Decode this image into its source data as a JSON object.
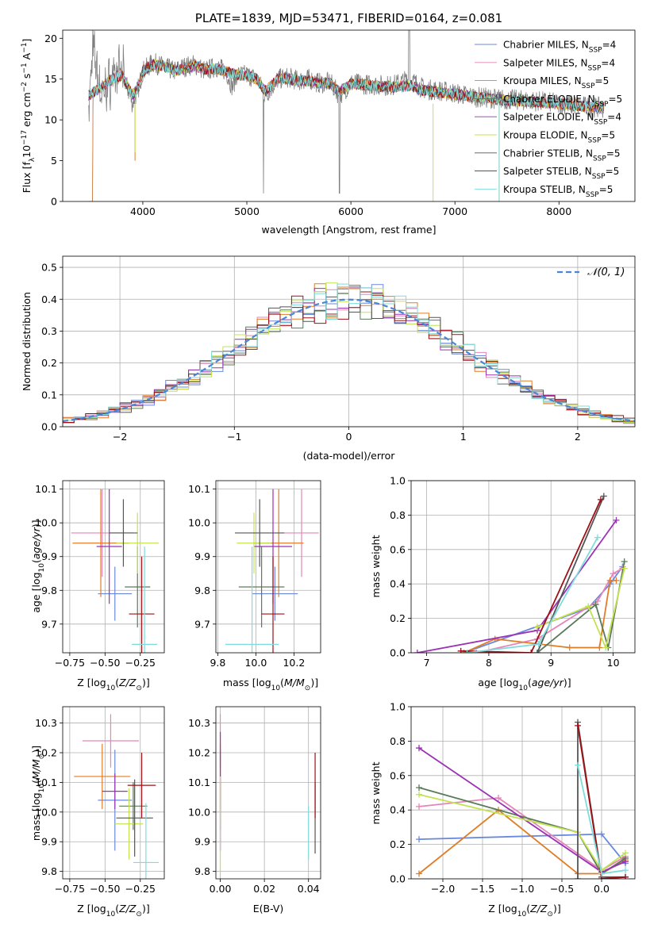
{
  "colors": [
    "#6a89dd",
    "#e486b8",
    "#e07d27",
    "#5a7a5a",
    "#9b31b5",
    "#c4e250",
    "#555555",
    "#9e1015",
    "#7fdcdc"
  ],
  "chart_data": [
    {
      "type": "line",
      "title": "PLATE=1839, MJD=53471, FIBERID=0164, z=0.081",
      "xlabel": "wavelength [Angstrom, rest frame]",
      "ylabel": "Flux [f$_\\lambda$10$^{-17}$ erg cm$^{-2}$ s$^{-1}$ A$^{-1}$]",
      "ylabel_parts": [
        "Flux [f",
        "λ",
        "10",
        "−17",
        " erg cm",
        "−2",
        " s",
        "−1",
        " A",
        "−1",
        "]"
      ],
      "xlim": [
        3230,
        8730
      ],
      "ylim": [
        0,
        21
      ],
      "xticks": [
        4000,
        5000,
        6000,
        7000,
        8000
      ],
      "yticks": [
        0,
        5,
        10,
        15,
        20
      ],
      "legend": {
        "position": "top-right",
        "entries": [
          "Chabrier MILES, N$_{SSP}$=4",
          "Salpeter MILES, N$_{SSP}$=4",
          "Kroupa MILES, N$_{SSP}$=5",
          "Chabrier ELODIE, N$_{SSP}$=5",
          "Salpeter ELODIE, N$_{SSP}$=4",
          "Kroupa ELODIE, N$_{SSP}$=5",
          "Chabrier STELIB, N$_{SSP}$=5",
          "Salpeter STELIB, N$_{SSP}$=5",
          "Kroupa STELIB, N$_{SSP}$=5"
        ],
        "entry_labels": [
          [
            "Chabrier MILES, N",
            "SSP",
            "=4"
          ],
          [
            "Salpeter MILES, N",
            "SSP",
            "=4"
          ],
          [
            "Kroupa MILES, N",
            "SSP",
            "=5"
          ],
          [
            "Chabrier ELODIE, N",
            "SSP",
            "=5"
          ],
          [
            "Salpeter ELODIE, N",
            "SSP",
            "=4"
          ],
          [
            "Kroupa ELODIE, N",
            "SSP",
            "=5"
          ],
          [
            "Chabrier STELIB, N",
            "SSP",
            "=5"
          ],
          [
            "Salpeter STELIB, N",
            "SSP",
            "=5"
          ],
          [
            "Kroupa STELIB, N",
            "SSP",
            "=5"
          ]
        ]
      },
      "observed_spectrum": [
        [
          3480,
          11
        ],
        [
          3520,
          19
        ],
        [
          3600,
          13
        ],
        [
          3700,
          15
        ],
        [
          3800,
          16
        ],
        [
          3900,
          12
        ],
        [
          3960,
          14
        ],
        [
          4000,
          16
        ],
        [
          4100,
          17
        ],
        [
          4200,
          16.5
        ],
        [
          4300,
          16
        ],
        [
          4400,
          16.5
        ],
        [
          4500,
          16.8
        ],
        [
          4600,
          16
        ],
        [
          4700,
          16.5
        ],
        [
          4800,
          16
        ],
        [
          4862,
          14
        ],
        [
          4900,
          15.5
        ],
        [
          5000,
          15.5
        ],
        [
          5100,
          15
        ],
        [
          5175,
          13
        ],
        [
          5300,
          15
        ],
        [
          5400,
          15.2
        ],
        [
          5500,
          14.8
        ],
        [
          5600,
          15
        ],
        [
          5700,
          14.5
        ],
        [
          5800,
          14.6
        ],
        [
          5890,
          13
        ],
        [
          6000,
          14.5
        ],
        [
          6200,
          14.3
        ],
        [
          6400,
          14.2
        ],
        [
          6563,
          15
        ],
        [
          6700,
          13.8
        ],
        [
          6900,
          13.5
        ],
        [
          7200,
          12.8
        ],
        [
          7500,
          12.5
        ],
        [
          7800,
          12.3
        ],
        [
          8000,
          12
        ],
        [
          8200,
          11.7
        ],
        [
          8400,
          11.5
        ]
      ],
      "model_spectrum": [
        [
          3480,
          13
        ],
        [
          3600,
          14
        ],
        [
          3700,
          15
        ],
        [
          3800,
          15.5
        ],
        [
          3900,
          13
        ],
        [
          3960,
          14
        ],
        [
          4000,
          16
        ],
        [
          4100,
          16.8
        ],
        [
          4200,
          16.6
        ],
        [
          4300,
          16
        ],
        [
          4400,
          16.4
        ],
        [
          4500,
          16.6
        ],
        [
          4600,
          16.2
        ],
        [
          4700,
          16.3
        ],
        [
          4800,
          15.9
        ],
        [
          4900,
          15.6
        ],
        [
          5000,
          15.4
        ],
        [
          5100,
          15
        ],
        [
          5175,
          13.5
        ],
        [
          5300,
          15
        ],
        [
          5400,
          15
        ],
        [
          5500,
          14.8
        ],
        [
          5600,
          14.8
        ],
        [
          5700,
          14.5
        ],
        [
          5800,
          14.5
        ],
        [
          5890,
          13.4
        ],
        [
          6000,
          14.4
        ],
        [
          6200,
          14.2
        ],
        [
          6400,
          14
        ],
        [
          6563,
          14.2
        ],
        [
          6700,
          13.6
        ],
        [
          6900,
          13.3
        ],
        [
          7200,
          12.8
        ],
        [
          7500,
          12.4
        ],
        [
          7800,
          12.2
        ],
        [
          8000,
          12
        ],
        [
          8200,
          11.7
        ],
        [
          8400,
          11.6
        ]
      ]
    },
    {
      "type": "line",
      "xlabel": "(data-model)/error",
      "ylabel": "Normed distribution",
      "xlim": [
        -2.5,
        2.5
      ],
      "ylim": [
        0,
        0.535
      ],
      "xticks": [
        -2,
        -1,
        0,
        1,
        2
      ],
      "yticks": [
        0.0,
        0.1,
        0.2,
        0.3,
        0.4,
        0.5
      ],
      "legend": {
        "position": "top-right",
        "entries": [
          "$\\mathcal{N}(0, 1)$"
        ],
        "label_text": "𝒩(0, 1)"
      },
      "bin_width": 0.1,
      "reference_curve": "normal(0,1) pdf"
    },
    {
      "type": "scatter",
      "xlabel": "Z [log$_{10}$($Z/Z_\\odot$)]",
      "ylabel": "age  [log$_{10}$($age/yr$)]",
      "xlim": [
        -0.8,
        -0.08
      ],
      "ylim": [
        9.615,
        10.125
      ],
      "xticks": [
        -0.75,
        -0.5,
        -0.25
      ],
      "yticks": [
        9.7,
        9.8,
        9.9,
        10.0,
        10.1
      ],
      "points": [
        {
          "x": -0.43,
          "xerr": 0.12,
          "y": 9.79,
          "yerr": 0.08
        },
        {
          "x": -0.52,
          "xerr": 0.22,
          "y": 9.97,
          "yerr": 0.13
        },
        {
          "x": -0.53,
          "xerr": 0.2,
          "y": 9.94,
          "yerr": 0.16
        },
        {
          "x": -0.27,
          "xerr": 0.09,
          "y": 9.81,
          "yerr": 0.12
        },
        {
          "x": -0.47,
          "xerr": 0.09,
          "y": 9.93,
          "yerr": 0.17
        },
        {
          "x": -0.27,
          "xerr": 0.15,
          "y": 9.94,
          "yerr": 0.09
        },
        {
          "x": -0.37,
          "xerr": 0.1,
          "y": 9.97,
          "yerr": 0.1
        },
        {
          "x": -0.24,
          "xerr": 0.09,
          "y": 9.73,
          "yerr": 0.17
        },
        {
          "x": -0.22,
          "xerr": 0.09,
          "y": 9.64,
          "yerr": 0.29
        }
      ]
    },
    {
      "type": "scatter",
      "xlabel": "mass [log$_{10}$($M/M_\\odot$)]",
      "ylabel": "",
      "xlim": [
        9.79,
        10.34
      ],
      "ylim": [
        9.615,
        10.125
      ],
      "xticks": [
        9.8,
        10.0,
        10.2
      ],
      "yticks": [
        9.7,
        9.8,
        9.9,
        10.0,
        10.1
      ],
      "points": [
        {
          "x": 10.1,
          "xerr": 0.12,
          "y": 9.79,
          "yerr": 0.08
        },
        {
          "x": 10.24,
          "xerr": 0.09,
          "y": 9.97,
          "yerr": 0.13
        },
        {
          "x": 10.12,
          "xerr": 0.13,
          "y": 9.94,
          "yerr": 0.16
        },
        {
          "x": 10.03,
          "xerr": 0.12,
          "y": 9.81,
          "yerr": 0.12
        },
        {
          "x": 10.09,
          "xerr": 0.1,
          "y": 9.93,
          "yerr": 0.17
        },
        {
          "x": 9.99,
          "xerr": 0.09,
          "y": 9.94,
          "yerr": 0.09
        },
        {
          "x": 10.02,
          "xerr": 0.13,
          "y": 9.97,
          "yerr": 0.1
        },
        {
          "x": 10.09,
          "xerr": 0.06,
          "y": 9.73,
          "yerr": 0.17
        },
        {
          "x": 9.98,
          "xerr": 0.14,
          "y": 9.64,
          "yerr": 0.29
        }
      ]
    },
    {
      "type": "line",
      "xlabel": "age  [log$_{10}$($age/yr$)]",
      "ylabel": "mass weight",
      "xlim": [
        6.75,
        10.35
      ],
      "ylim": [
        0,
        1
      ],
      "xticks": [
        7,
        8,
        9,
        10
      ],
      "yticks": [
        0.0,
        0.2,
        0.4,
        0.6,
        0.8,
        1.0
      ],
      "series": [
        {
          "points": [
            [
              7.6,
              0.0
            ],
            [
              9.6,
              0.26
            ],
            [
              9.95,
              0.4
            ],
            [
              10.15,
              0.5
            ]
          ]
        },
        {
          "points": [
            [
              7.8,
              0.0
            ],
            [
              8.78,
              0.08
            ],
            [
              9.75,
              0.3
            ],
            [
              10.0,
              0.46
            ],
            [
              10.15,
              0.49
            ]
          ]
        },
        {
          "points": [
            [
              7.6,
              0.0
            ],
            [
              8.1,
              0.08
            ],
            [
              9.3,
              0.03
            ],
            [
              9.78,
              0.03
            ],
            [
              9.95,
              0.42
            ],
            [
              10.05,
              0.42
            ]
          ]
        },
        {
          "points": [
            [
              8.78,
              0.0
            ],
            [
              9.72,
              0.28
            ],
            [
              9.92,
              0.03
            ],
            [
              10.18,
              0.53
            ]
          ]
        },
        {
          "points": [
            [
              6.85,
              0.0
            ],
            [
              8.78,
              0.13
            ],
            [
              10.05,
              0.77
            ]
          ]
        },
        {
          "points": [
            [
              8.78,
              0.15
            ],
            [
              9.6,
              0.27
            ],
            [
              9.88,
              0.03
            ],
            [
              10.18,
              0.49
            ]
          ]
        },
        {
          "points": [
            [
              8.78,
              0.0
            ],
            [
              9.85,
              0.91
            ]
          ]
        },
        {
          "points": [
            [
              7.55,
              0.01
            ],
            [
              8.68,
              0.0
            ],
            [
              9.8,
              0.89
            ]
          ]
        },
        {
          "points": [
            [
              7.65,
              0.0
            ],
            [
              8.8,
              0.05
            ],
            [
              9.75,
              0.67
            ]
          ]
        }
      ]
    },
    {
      "type": "scatter",
      "xlabel": "Z [log$_{10}$($Z/Z_\\odot$)]",
      "ylabel": "mass [log$_{10}$($M/M_\\odot$)]",
      "xlim": [
        -0.8,
        -0.08
      ],
      "ylim": [
        9.775,
        10.355
      ],
      "xticks": [
        -0.75,
        -0.5,
        -0.25
      ],
      "yticks": [
        9.8,
        9.9,
        10.0,
        10.1,
        10.2,
        10.3
      ],
      "points": [
        {
          "x": -0.43,
          "xerr": 0.12,
          "y": 10.04,
          "yerr": 0.17
        },
        {
          "x": -0.46,
          "xerr": 0.2,
          "y": 10.24,
          "yerr": 0.09
        },
        {
          "x": -0.52,
          "xerr": 0.2,
          "y": 10.12,
          "yerr": 0.11
        },
        {
          "x": -0.3,
          "xerr": 0.1,
          "y": 10.02,
          "yerr": 0.08
        },
        {
          "x": -0.43,
          "xerr": 0.09,
          "y": 10.07,
          "yerr": 0.06
        },
        {
          "x": -0.33,
          "xerr": 0.1,
          "y": 9.96,
          "yerr": 0.12
        },
        {
          "x": -0.29,
          "xerr": 0.13,
          "y": 9.98,
          "yerr": 0.13
        },
        {
          "x": -0.24,
          "xerr": 0.1,
          "y": 10.09,
          "yerr": 0.11
        },
        {
          "x": -0.21,
          "xerr": 0.09,
          "y": 9.83,
          "yerr": 0.2
        }
      ]
    },
    {
      "type": "scatter",
      "xlabel": "E(B-V)",
      "ylabel": "",
      "xlim": [
        -0.002,
        0.0455
      ],
      "ylim": [
        9.775,
        10.355
      ],
      "xticks": [
        0.0,
        0.02,
        0.04
      ],
      "yticks": [
        9.8,
        9.9,
        10.0,
        10.1,
        10.2,
        10.3
      ],
      "points": [
        {
          "x": 0.0,
          "y": 10.04,
          "yerr": 0.17
        },
        {
          "x": 0.0,
          "y": 10.24,
          "yerr": 0.09
        },
        {
          "x": 0.0,
          "y": 10.12,
          "yerr": 0.11
        },
        {
          "x": 0.0,
          "y": 10.02,
          "yerr": 0.08
        },
        {
          "x": 0.0,
          "y": 10.07,
          "yerr": 0.2
        },
        {
          "x": 0.0,
          "y": 9.96,
          "yerr": 0.16
        },
        {
          "x": 0.043,
          "y": 9.98,
          "yerr": 0.12
        },
        {
          "x": 0.043,
          "y": 10.09,
          "yerr": 0.11
        },
        {
          "x": 0.04,
          "y": 9.93,
          "yerr": 0.09
        }
      ]
    },
    {
      "type": "line",
      "xlabel": "Z [log$_{10}$($Z/Z_\\odot$)]",
      "ylabel": "mass weight",
      "xlim": [
        -2.4,
        0.42
      ],
      "ylim": [
        0,
        1
      ],
      "xticks": [
        -2.0,
        -1.5,
        -1.0,
        -0.5,
        0.0
      ],
      "yticks": [
        0.0,
        0.2,
        0.4,
        0.6,
        0.8,
        1.0
      ],
      "series": [
        {
          "points": [
            [
              -2.3,
              0.23
            ],
            [
              0.0,
              0.26
            ],
            [
              0.3,
              0.09
            ]
          ]
        },
        {
          "points": [
            [
              -2.3,
              0.42
            ],
            [
              -1.3,
              0.47
            ],
            [
              0.0,
              0.05
            ],
            [
              0.3,
              0.13
            ]
          ]
        },
        {
          "points": [
            [
              -2.3,
              0.03
            ],
            [
              -1.3,
              0.4
            ],
            [
              -0.3,
              0.03
            ],
            [
              0.0,
              0.03
            ],
            [
              0.3,
              0.11
            ]
          ]
        },
        {
          "points": [
            [
              -2.3,
              0.53
            ],
            [
              -0.3,
              0.27
            ],
            [
              0.0,
              0.03
            ],
            [
              0.3,
              0.12
            ]
          ]
        },
        {
          "points": [
            [
              -2.3,
              0.76
            ],
            [
              0.0,
              0.04
            ],
            [
              0.3,
              0.1
            ]
          ]
        },
        {
          "points": [
            [
              -2.3,
              0.49
            ],
            [
              -0.3,
              0.27
            ],
            [
              0.0,
              0.05
            ],
            [
              0.3,
              0.15
            ]
          ]
        },
        {
          "points": [
            [
              -0.3,
              0.0
            ],
            [
              -0.3,
              0.91
            ],
            [
              0.0,
              0.01
            ],
            [
              0.3,
              0.01
            ]
          ]
        },
        {
          "points": [
            [
              -0.3,
              0.89
            ],
            [
              0.0,
              0.0
            ],
            [
              0.3,
              0.01
            ]
          ]
        },
        {
          "points": [
            [
              -0.3,
              0.66
            ],
            [
              0.0,
              0.03
            ],
            [
              0.3,
              0.05
            ]
          ]
        }
      ]
    }
  ]
}
